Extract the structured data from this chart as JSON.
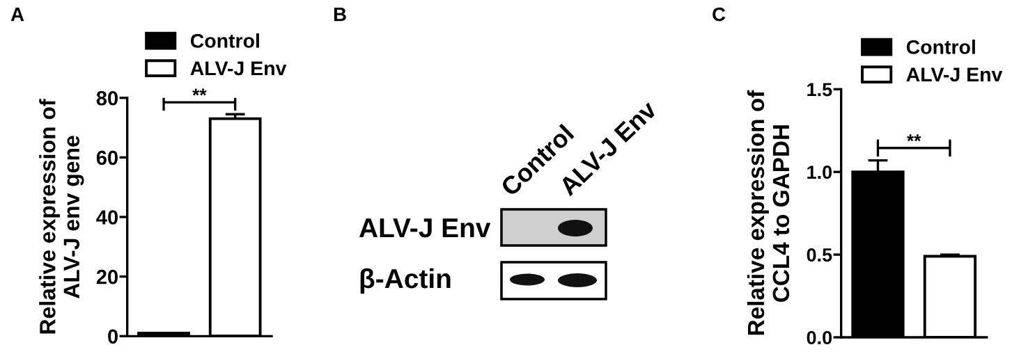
{
  "chart_data": [
    {
      "type": "bar",
      "title": "A",
      "ylabel": "Relative expression of\nALV-J env gene",
      "categories": [
        null,
        null
      ],
      "series": [
        {
          "name": "Control",
          "color": "#000000",
          "values": [
            1,
            null
          ]
        },
        {
          "name": "ALV-J Env",
          "color": "#ffffff",
          "values": [
            null,
            73
          ],
          "errors": [
            null,
            1.5
          ]
        }
      ],
      "ylim": [
        0,
        80
      ],
      "yticks": [
        0,
        20,
        40,
        60,
        80
      ],
      "legend": "top right",
      "annotations": [
        "**"
      ]
    },
    {
      "type": "other",
      "title": "B",
      "annotations": [
        "Control",
        "ALV-J Env",
        "ALV-J Env",
        "β-Actin"
      ]
    },
    {
      "type": "bar",
      "title": "C",
      "ylabel": "Relative expression of\nCCL4 to GAPDH",
      "categories": [
        null,
        null
      ],
      "series": [
        {
          "name": "Control",
          "color": "#000000",
          "values": [
            1.0,
            null
          ],
          "errors": [
            0.07,
            null
          ]
        },
        {
          "name": "ALV-J Env",
          "color": "#ffffff",
          "values": [
            null,
            0.49
          ],
          "errors": [
            null,
            0.01
          ]
        }
      ],
      "ylim": [
        0,
        1.5
      ],
      "yticks": [
        {
          "value": 0,
          "label": "0.0"
        },
        {
          "value": 0.5,
          "label": "0.5"
        },
        {
          "value": 1.0,
          "label": "1.0"
        },
        {
          "value": 1.5,
          "label": "1.5"
        }
      ],
      "legend": "top right",
      "annotations": [
        "**"
      ]
    }
  ]
}
